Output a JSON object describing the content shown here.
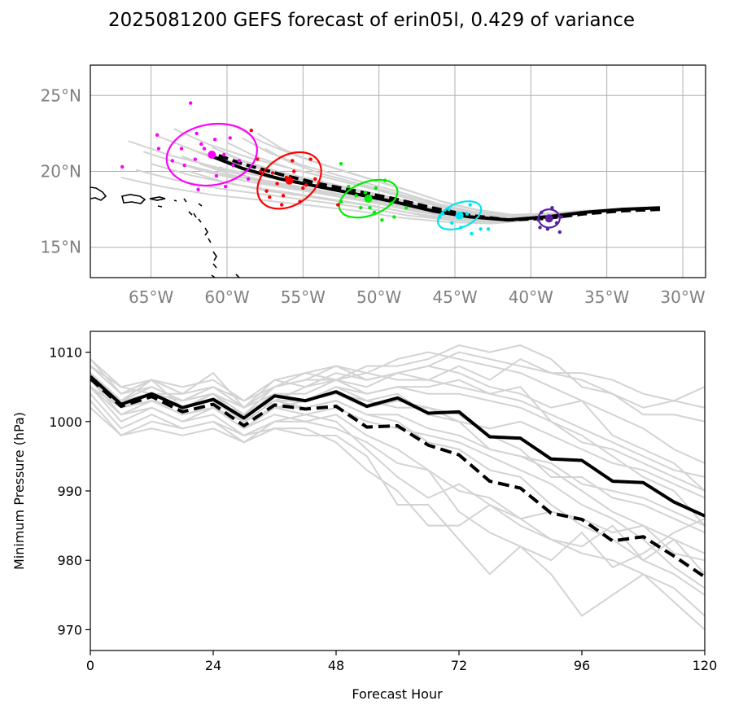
{
  "title": "2025081200 GEFS forecast of erin05l, 0.429 of variance",
  "map": {
    "lon_range": [
      -69,
      -28.5
    ],
    "lat_range": [
      13,
      27
    ],
    "lon_ticks": [
      -65,
      -60,
      -55,
      -50,
      -45,
      -40,
      -35,
      -30
    ],
    "lon_tick_labels": [
      "65°W",
      "60°W",
      "55°W",
      "50°W",
      "45°W",
      "40°W",
      "35°W",
      "30°W"
    ],
    "lat_ticks": [
      15,
      20,
      25
    ],
    "lat_tick_labels": [
      "15°N",
      "20°N",
      "25°N"
    ],
    "grid": true,
    "mean_track": [
      [
        -31.5,
        17.6
      ],
      [
        -34,
        17.5
      ],
      [
        -36.5,
        17.3
      ],
      [
        -39,
        17.0
      ],
      [
        -41.5,
        16.8
      ],
      [
        -44,
        17.0
      ],
      [
        -46.5,
        17.4
      ],
      [
        -49,
        18.0
      ],
      [
        -51.5,
        18.5
      ],
      [
        -54,
        19.0
      ],
      [
        -56.5,
        19.5
      ],
      [
        -59,
        20.2
      ],
      [
        -61,
        21.0
      ]
    ],
    "dashed_track": [
      [
        -31.5,
        17.5
      ],
      [
        -34,
        17.4
      ],
      [
        -36.5,
        17.2
      ],
      [
        -39,
        16.9
      ],
      [
        -41.5,
        16.8
      ],
      [
        -44,
        17.1
      ],
      [
        -46.5,
        17.6
      ],
      [
        -49,
        18.2
      ],
      [
        -51.5,
        18.7
      ],
      [
        -54,
        19.2
      ],
      [
        -56.5,
        19.8
      ],
      [
        -59,
        20.5
      ],
      [
        -61,
        21.2
      ]
    ],
    "member_end_offsets": [
      [
        -6,
        -1.4
      ],
      [
        -5,
        -0.9
      ],
      [
        -4,
        -0.5
      ],
      [
        -3,
        -0.2
      ],
      [
        -2,
        0.0
      ],
      [
        -1,
        0.3
      ],
      [
        0,
        0.6
      ],
      [
        1,
        0.9
      ],
      [
        2,
        1.2
      ],
      [
        3,
        1.5
      ],
      [
        -5.5,
        1.0
      ],
      [
        -3.5,
        1.3
      ],
      [
        -1.5,
        -1.0
      ],
      [
        0.5,
        -0.7
      ],
      [
        2.5,
        -0.4
      ],
      [
        1.5,
        2.0
      ],
      [
        -2.5,
        1.8
      ],
      [
        -4.5,
        0.3
      ],
      [
        0.8,
        0.2
      ],
      [
        -0.8,
        -0.5
      ],
      [
        3.5,
        0.5
      ]
    ],
    "clusters": [
      {
        "color": "#5b1fa6",
        "center": [
          -38.8,
          16.9
        ],
        "rx": 0.7,
        "ry": 0.6,
        "angle": 0,
        "points": [
          [
            -38.1,
            16.0
          ],
          [
            -38.6,
            17.6
          ],
          [
            -39.4,
            16.3
          ],
          [
            -38.0,
            17.0
          ],
          [
            -39.3,
            17.3
          ],
          [
            -38.9,
            16.2
          ],
          [
            -38.3,
            16.6
          ],
          [
            -39.5,
            16.8
          ]
        ]
      },
      {
        "color": "#00e5ee",
        "center": [
          -44.7,
          17.1
        ],
        "rx": 1.5,
        "ry": 0.8,
        "angle": -22,
        "points": [
          [
            -46.0,
            17.0
          ],
          [
            -44.0,
            17.8
          ],
          [
            -43.3,
            16.2
          ],
          [
            -45.4,
            17.5
          ],
          [
            -44.6,
            16.3
          ],
          [
            -43.9,
            15.9
          ],
          [
            -42.8,
            16.2
          ],
          [
            -45.8,
            17.2
          ],
          [
            -44.2,
            17.2
          ],
          [
            -45.2,
            16.6
          ]
        ]
      },
      {
        "color": "#00ee00",
        "center": [
          -50.7,
          18.2
        ],
        "rx": 2.0,
        "ry": 1.1,
        "angle": -20,
        "points": [
          [
            -52.5,
            18.0
          ],
          [
            -52.5,
            20.5
          ],
          [
            -49.6,
            19.4
          ],
          [
            -49.0,
            17.0
          ],
          [
            -48.2,
            17.6
          ],
          [
            -51.2,
            17.6
          ],
          [
            -50.3,
            17.3
          ],
          [
            -50.2,
            18.9
          ],
          [
            -49.8,
            16.8
          ],
          [
            -51.5,
            18.4
          ],
          [
            -50.6,
            17.6
          ],
          [
            -49.2,
            17.9
          ],
          [
            -52.0,
            19.0
          ],
          [
            -50.9,
            18.6
          ]
        ]
      },
      {
        "color": "#ff0000",
        "center": [
          -55.9,
          19.4
        ],
        "rx": 2.3,
        "ry": 1.6,
        "angle": -35,
        "points": [
          [
            -57.0,
            19.9
          ],
          [
            -55.7,
            20.7
          ],
          [
            -56.3,
            18.4
          ],
          [
            -58.0,
            20.8
          ],
          [
            -54.8,
            19.1
          ],
          [
            -55.2,
            18.0
          ],
          [
            -57.4,
            18.7
          ],
          [
            -52.7,
            17.8
          ],
          [
            -54.5,
            20.8
          ],
          [
            -56.1,
            19.6
          ],
          [
            -55.6,
            20.0
          ],
          [
            -57.2,
            18.3
          ],
          [
            -54.2,
            19.5
          ],
          [
            -58.4,
            22.7
          ],
          [
            -56.7,
            19.2
          ],
          [
            -55.0,
            18.9
          ],
          [
            -57.8,
            20.0
          ],
          [
            -56.4,
            17.8
          ]
        ]
      },
      {
        "color": "#ff00ff",
        "center": [
          -61.0,
          21.1
        ],
        "rx": 3.0,
        "ry": 2.0,
        "angle": -10,
        "points": [
          [
            -62.4,
            24.5
          ],
          [
            -64.5,
            21.5
          ],
          [
            -66.9,
            20.3
          ],
          [
            -61.7,
            21.8
          ],
          [
            -59.8,
            22.2
          ],
          [
            -62.1,
            20.8
          ],
          [
            -60.7,
            19.7
          ],
          [
            -59.6,
            20.4
          ],
          [
            -63.6,
            20.7
          ],
          [
            -64.6,
            22.4
          ],
          [
            -60.2,
            21.1
          ],
          [
            -62.8,
            20.4
          ],
          [
            -61.5,
            21.5
          ],
          [
            -60.1,
            19.0
          ],
          [
            -62.0,
            22.5
          ],
          [
            -59.2,
            20.7
          ],
          [
            -63.0,
            21.5
          ],
          [
            -61.9,
            18.8
          ],
          [
            -60.8,
            22.1
          ],
          [
            -58.6,
            19.5
          ]
        ]
      }
    ]
  },
  "chart_data": {
    "type": "line",
    "xlabel": "Forecast Hour",
    "ylabel": "Minimum Pressure (hPa)",
    "xlim": [
      0,
      120
    ],
    "ylim": [
      967,
      1013
    ],
    "xticks": [
      0,
      24,
      48,
      72,
      96,
      120
    ],
    "yticks": [
      970,
      980,
      990,
      1000,
      1010
    ],
    "x": [
      0,
      6,
      12,
      18,
      24,
      30,
      36,
      42,
      48,
      54,
      60,
      66,
      72,
      78,
      84,
      90,
      96,
      102,
      108,
      114,
      120
    ],
    "series": [
      {
        "style": "solid-black",
        "values": [
          1006.5,
          1002.5,
          1004.0,
          1002.0,
          1003.2,
          1000.5,
          1003.7,
          1003.0,
          1004.3,
          1002.2,
          1003.4,
          1001.2,
          1001.4,
          997.8,
          997.6,
          994.6,
          994.4,
          991.4,
          991.2,
          988.4,
          986.4
        ]
      },
      {
        "style": "dashed-black",
        "values": [
          1006.2,
          1002.2,
          1003.6,
          1001.4,
          1002.5,
          999.4,
          1002.4,
          1001.8,
          1002.2,
          999.2,
          999.4,
          996.6,
          995.2,
          991.4,
          990.4,
          986.8,
          985.9,
          982.8,
          983.4,
          980.6,
          977.6
        ]
      }
    ],
    "members": [
      [
        1009,
        1004,
        1006,
        1004,
        1007,
        1002,
        1006,
        1005,
        1007,
        1006,
        1007,
        1006,
        1008,
        1006,
        1009,
        1007,
        1006,
        1004,
        1002,
        1003,
        1005
      ],
      [
        1008,
        1005,
        1004,
        1004,
        1005,
        1003,
        1005,
        1007,
        1006,
        1008,
        1008,
        1009,
        1011,
        1010,
        1011,
        1009,
        1005,
        1004,
        1001,
        1001,
        1000
      ],
      [
        1007,
        1003,
        1005,
        1003,
        1004,
        1002,
        1004,
        1004,
        1006,
        1005,
        1007,
        1008,
        1007,
        1005,
        1004,
        1002,
        1003,
        998,
        996,
        994,
        990
      ],
      [
        1007,
        1003,
        1006,
        1002,
        1004,
        1001,
        1003,
        1005,
        1006,
        1004,
        1005,
        1005,
        1006,
        1004,
        1005,
        1000,
        998,
        995,
        992,
        990,
        985
      ],
      [
        1006,
        1002,
        1003,
        1001,
        1002,
        1000,
        1002,
        1003,
        1004,
        1002,
        1003,
        1002,
        1000,
        996,
        995,
        993,
        990,
        987,
        985,
        983,
        981
      ],
      [
        1006,
        1001,
        1003,
        1002,
        1003,
        1000,
        1002,
        1002,
        1003,
        1001,
        1000,
        997,
        996,
        993,
        992,
        988,
        985,
        983,
        980,
        978,
        975
      ],
      [
        1005,
        1001,
        1002,
        1000,
        1002,
        999,
        1001,
        1000,
        1001,
        998,
        996,
        993,
        990,
        989,
        986,
        983,
        981,
        980,
        978,
        974,
        970
      ],
      [
        1005,
        1000,
        1002,
        1000,
        1001,
        998,
        1000,
        1000,
        999,
        997,
        994,
        993,
        987,
        984,
        982,
        978,
        972,
        975,
        978,
        976,
        972
      ],
      [
        1004,
        999,
        1001,
        999,
        1000,
        998,
        999,
        998,
        998,
        995,
        988,
        988,
        983,
        978,
        982,
        980,
        984,
        979,
        981,
        984,
        986
      ],
      [
        1003,
        998,
        1000,
        999,
        1000,
        997,
        999,
        999,
        997,
        993,
        990,
        985,
        985,
        988,
        985,
        983,
        982,
        985,
        980,
        983,
        978
      ],
      [
        1002,
        998,
        999,
        998,
        999,
        997,
        1000,
        1001,
        1000,
        996,
        992,
        989,
        991,
        988,
        986,
        987,
        986,
        984,
        985,
        981,
        980
      ],
      [
        1007,
        1003,
        1004,
        1003,
        1004,
        1001,
        1004,
        1003,
        1005,
        1003,
        1004,
        1001,
        1000,
        999,
        1000,
        998,
        996,
        994,
        993,
        991,
        989
      ],
      [
        1008,
        1004,
        1005,
        1003,
        1005,
        1002,
        1005,
        1006,
        1006,
        1007,
        1006,
        1006,
        1005,
        1004,
        1003,
        1001,
        999,
        997,
        995,
        993,
        992
      ],
      [
        1006,
        1002,
        1004,
        1002,
        1003,
        1001,
        1003,
        1003,
        1004,
        1003,
        1002,
        1002,
        1001,
        998,
        996,
        992,
        992,
        989,
        988,
        986,
        984
      ],
      [
        1007,
        1002,
        1004,
        1003,
        1004,
        1001,
        1005,
        1006,
        1008,
        1007,
        1009,
        1010,
        1009,
        1008,
        1007,
        1005,
        1003,
        1001,
        999,
        996,
        994
      ],
      [
        1005,
        1002,
        1003,
        1001,
        1002,
        999,
        1002,
        1001,
        1002,
        1000,
        999,
        998,
        997,
        995,
        993,
        991,
        988,
        986,
        983,
        979,
        976
      ],
      [
        1006,
        1003,
        1004,
        1002,
        1003,
        1000,
        1003,
        1002,
        1003,
        1001,
        1001,
        999,
        998,
        996,
        995,
        994,
        991,
        990,
        989,
        987,
        985
      ],
      [
        1009,
        1005,
        1006,
        1005,
        1006,
        1003,
        1006,
        1007,
        1008,
        1006,
        1007,
        1008,
        1010,
        1009,
        1008,
        1007,
        1007,
        1006,
        1004,
        1003,
        1002
      ],
      [
        1006,
        1002,
        1004,
        1002,
        1004,
        1000,
        1003,
        1003,
        1005,
        1004,
        1005,
        1004,
        1004,
        1003,
        1002,
        1000,
        997,
        996,
        994,
        992,
        990
      ]
    ]
  }
}
